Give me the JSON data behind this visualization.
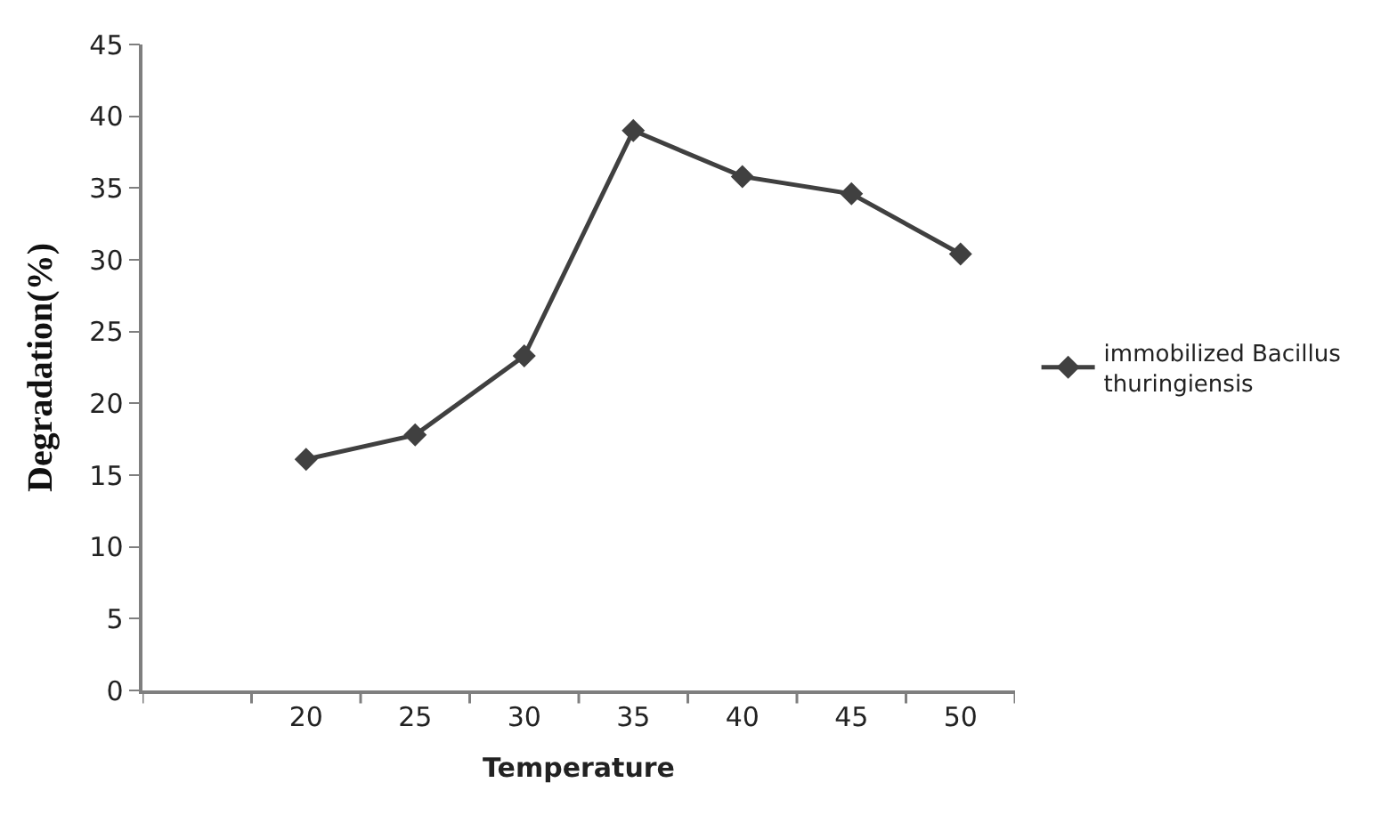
{
  "chart_data": {
    "type": "line",
    "xlabel": "Temperature",
    "ylabel": "Degradation(%)",
    "categories": [
      null,
      "20",
      "25",
      "30",
      "35",
      "40",
      "45",
      "50"
    ],
    "series": [
      {
        "name": "immobilized Bacillus thuringiensis",
        "color": "#404040",
        "values": [
          null,
          16.1,
          17.8,
          23.3,
          39.0,
          35.8,
          34.6,
          30.4
        ]
      }
    ],
    "ylim": [
      0,
      45
    ],
    "yticks": [
      0,
      5,
      10,
      15,
      20,
      25,
      30,
      35,
      40,
      45
    ],
    "legend": "right",
    "marker": "diamond",
    "line_style": "solid"
  }
}
